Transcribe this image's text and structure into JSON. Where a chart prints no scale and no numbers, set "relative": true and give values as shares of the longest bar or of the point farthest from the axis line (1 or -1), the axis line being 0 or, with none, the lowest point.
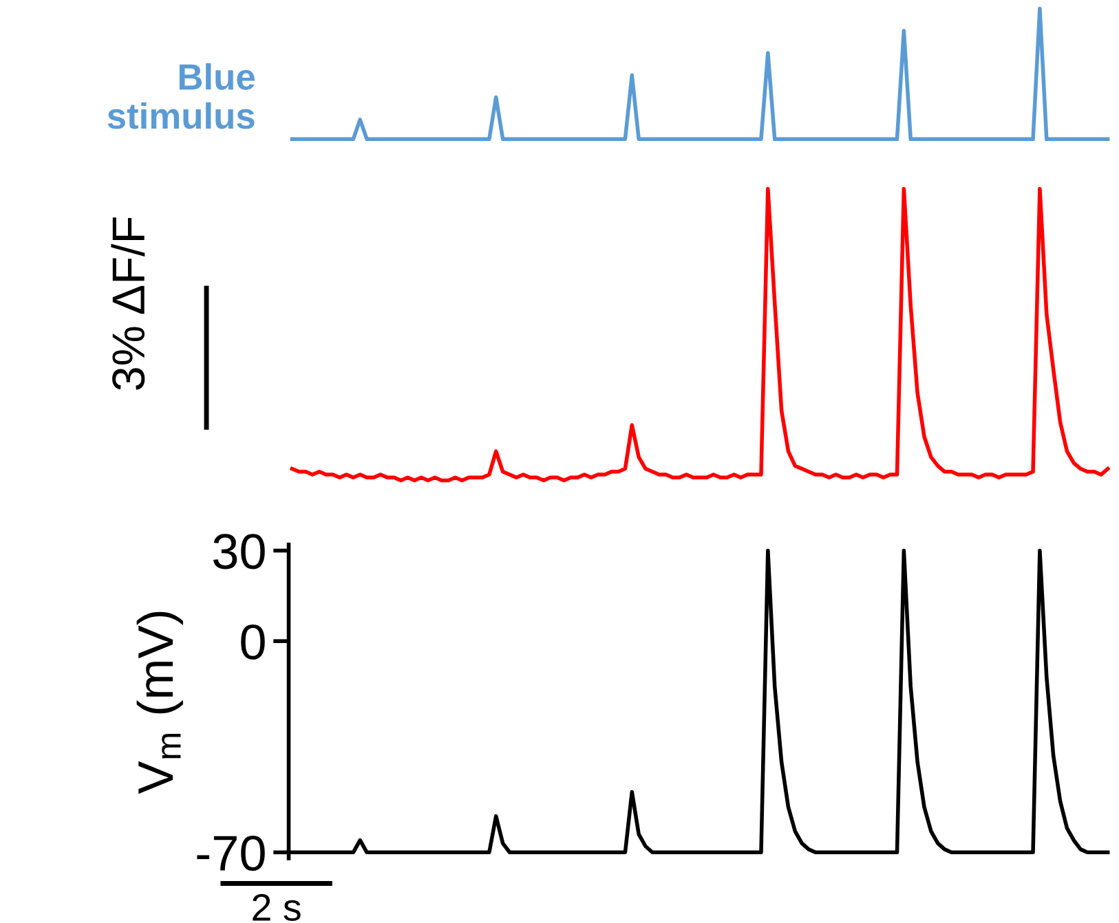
{
  "chart_data": [
    {
      "type": "line",
      "title": "Blue\nstimulus",
      "relative": true,
      "tick_labels": false,
      "grid": false,
      "categories": [
        null,
        null,
        null,
        null,
        null,
        null,
        null,
        null,
        null,
        null,
        null,
        null,
        null,
        null,
        null,
        null,
        null,
        null,
        null,
        null,
        null,
        null,
        null,
        null,
        null,
        null,
        null,
        null,
        null,
        null,
        null,
        null,
        null,
        null,
        null,
        null,
        null,
        null,
        null,
        null,
        null,
        null,
        null,
        null,
        null,
        null,
        null,
        null,
        null,
        null,
        null,
        null,
        null,
        null,
        null,
        null,
        null,
        null,
        null,
        null,
        null,
        null,
        null,
        null,
        null,
        null,
        null,
        null,
        null,
        null,
        null,
        null,
        null,
        null,
        null,
        null,
        null,
        null,
        null,
        null,
        null,
        null,
        null,
        null,
        null,
        null,
        null,
        null,
        null,
        null,
        null,
        null,
        null,
        null,
        null,
        null,
        null,
        null,
        null,
        null,
        null,
        null,
        null,
        null,
        null,
        null,
        null,
        null,
        null,
        null,
        null,
        null,
        null,
        null,
        null,
        null,
        null,
        null,
        null,
        null,
        null
      ],
      "series": [
        {
          "color": "#5b9bd5",
          "values": [
            0,
            0,
            0,
            0,
            0,
            0,
            0,
            0,
            0,
            0,
            0.15,
            0,
            0,
            0,
            0,
            0,
            0,
            0,
            0,
            0,
            0,
            0,
            0,
            0,
            0,
            0,
            0,
            0,
            0,
            0,
            0.32,
            0,
            0,
            0,
            0,
            0,
            0,
            0,
            0,
            0,
            0,
            0,
            0,
            0,
            0,
            0,
            0,
            0,
            0,
            0,
            0.49,
            0,
            0,
            0,
            0,
            0,
            0,
            0,
            0,
            0,
            0,
            0,
            0,
            0,
            0,
            0,
            0,
            0,
            0,
            0,
            0.66,
            0,
            0,
            0,
            0,
            0,
            0,
            0,
            0,
            0,
            0,
            0,
            0,
            0,
            0,
            0,
            0,
            0,
            0,
            0,
            0.83,
            0,
            0,
            0,
            0,
            0,
            0,
            0,
            0,
            0,
            0,
            0,
            0,
            0,
            0,
            0,
            0,
            0,
            0,
            0,
            1,
            0,
            0,
            0,
            0,
            0,
            0,
            0,
            0,
            0,
            0
          ]
        }
      ]
    },
    {
      "type": "line",
      "ylabel": "3% ΔF/F",
      "relative": true,
      "tick_labels": false,
      "grid": false,
      "categories": [
        null,
        null,
        null,
        null,
        null,
        null,
        null,
        null,
        null,
        null,
        null,
        null,
        null,
        null,
        null,
        null,
        null,
        null,
        null,
        null,
        null,
        null,
        null,
        null,
        null,
        null,
        null,
        null,
        null,
        null,
        null,
        null,
        null,
        null,
        null,
        null,
        null,
        null,
        null,
        null,
        null,
        null,
        null,
        null,
        null,
        null,
        null,
        null,
        null,
        null,
        null,
        null,
        null,
        null,
        null,
        null,
        null,
        null,
        null,
        null,
        null,
        null,
        null,
        null,
        null,
        null,
        null,
        null,
        null,
        null,
        null,
        null,
        null,
        null,
        null,
        null,
        null,
        null,
        null,
        null,
        null,
        null,
        null,
        null,
        null,
        null,
        null,
        null,
        null,
        null,
        null,
        null,
        null,
        null,
        null,
        null,
        null,
        null,
        null,
        null,
        null,
        null,
        null,
        null,
        null,
        null,
        null,
        null,
        null,
        null,
        null,
        null,
        null,
        null,
        null,
        null,
        null,
        null,
        null,
        null,
        null
      ],
      "series": [
        {
          "color": "#ff0000",
          "values": [
            0.04,
            0.03,
            0.03,
            0.02,
            0.03,
            0.02,
            0.02,
            0.01,
            0.02,
            0.01,
            0.02,
            0.01,
            0.01,
            0.02,
            0.01,
            0.01,
            0,
            0.01,
            0,
            0.01,
            0,
            0.01,
            0,
            0,
            0.01,
            0,
            0.01,
            0.01,
            0.01,
            0.02,
            0.1,
            0.03,
            0.02,
            0.01,
            0.02,
            0.01,
            0.01,
            0,
            0.01,
            0.01,
            0,
            0.01,
            0.01,
            0.02,
            0.01,
            0.02,
            0.02,
            0.03,
            0.03,
            0.04,
            0.19,
            0.08,
            0.04,
            0.03,
            0.02,
            0.02,
            0.01,
            0.01,
            0.02,
            0.01,
            0.01,
            0.01,
            0.02,
            0.01,
            0.01,
            0.02,
            0.01,
            0.02,
            0.02,
            0.02,
            1,
            0.61,
            0.24,
            0.1,
            0.05,
            0.04,
            0.03,
            0.02,
            0.02,
            0.01,
            0.02,
            0.01,
            0.01,
            0.02,
            0.01,
            0.02,
            0.02,
            0.01,
            0.02,
            0.02,
            1,
            0.6,
            0.3,
            0.15,
            0.08,
            0.05,
            0.03,
            0.03,
            0.02,
            0.02,
            0.02,
            0.01,
            0.02,
            0.02,
            0.01,
            0.02,
            0.02,
            0.02,
            0.02,
            0.03,
            1,
            0.57,
            0.38,
            0.2,
            0.1,
            0.06,
            0.04,
            0.03,
            0.03,
            0.02,
            0.04
          ]
        }
      ]
    },
    {
      "type": "line",
      "ylabel": "V$_{m}$ (mV)",
      "annotations": [
        "2 s"
      ],
      "tick_labels": "y",
      "grid": false,
      "ylim": [
        -72,
        32
      ],
      "yticks": [
        30,
        0,
        -70
      ],
      "categories": [
        null,
        null,
        null,
        null,
        null,
        null,
        null,
        null,
        null,
        null,
        null,
        null,
        null,
        null,
        null,
        null,
        null,
        null,
        null,
        null,
        null,
        null,
        null,
        null,
        null,
        null,
        null,
        null,
        null,
        null,
        null,
        null,
        null,
        null,
        null,
        null,
        null,
        null,
        null,
        null,
        null,
        null,
        null,
        null,
        null,
        null,
        null,
        null,
        null,
        null,
        null,
        null,
        null,
        null,
        null,
        null,
        null,
        null,
        null,
        null,
        null,
        null,
        null,
        null,
        null,
        null,
        null,
        null,
        null,
        null,
        null,
        null,
        null,
        null,
        null,
        null,
        null,
        null,
        null,
        null,
        null,
        null,
        null,
        null,
        null,
        null,
        null,
        null,
        null,
        null,
        null,
        null,
        null,
        null,
        null,
        null,
        null,
        null,
        null,
        null,
        null,
        null,
        null,
        null,
        null,
        null,
        null,
        null,
        null,
        null,
        null,
        null,
        null,
        null,
        null,
        null,
        null,
        null,
        null,
        null,
        null
      ],
      "series": [
        {
          "color": "#000000",
          "values": [
            -70,
            -70,
            -70,
            -70,
            -70,
            -70,
            -70,
            -70,
            -70,
            -70,
            -66,
            -70,
            -70,
            -70,
            -70,
            -70,
            -70,
            -70,
            -70,
            -70,
            -70,
            -70,
            -70,
            -70,
            -70,
            -70,
            -70,
            -70,
            -70,
            -70,
            -58,
            -67,
            -70,
            -70,
            -70,
            -70,
            -70,
            -70,
            -70,
            -70,
            -70,
            -70,
            -70,
            -70,
            -70,
            -70,
            -70,
            -70,
            -70,
            -70,
            -50,
            -64,
            -68,
            -70,
            -70,
            -70,
            -70,
            -70,
            -70,
            -70,
            -70,
            -70,
            -70,
            -70,
            -70,
            -70,
            -70,
            -70,
            -70,
            -70,
            30,
            -15,
            -40,
            -55,
            -63,
            -67,
            -69,
            -70,
            -70,
            -70,
            -70,
            -70,
            -70,
            -70,
            -70,
            -70,
            -70,
            -70,
            -70,
            -70,
            30,
            -15,
            -40,
            -55,
            -63,
            -67,
            -69,
            -70,
            -70,
            -70,
            -70,
            -70,
            -70,
            -70,
            -70,
            -70,
            -70,
            -70,
            -70,
            -70,
            30,
            -12,
            -38,
            -53,
            -62,
            -66,
            -69,
            -70,
            -70,
            -70,
            -70
          ]
        }
      ]
    }
  ]
}
